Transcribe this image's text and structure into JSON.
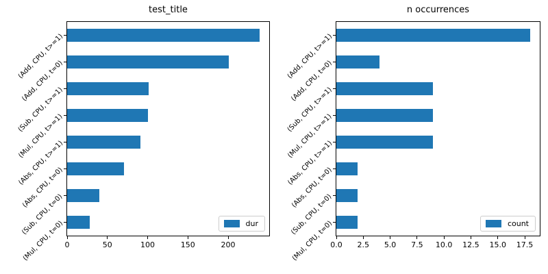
{
  "figure": {
    "background": "#ffffff",
    "bar_color": "#1f77b4"
  },
  "chart_data": [
    {
      "type": "bar",
      "orientation": "horizontal",
      "title": "test_title",
      "xlabel": "",
      "ylabel": "",
      "categories": [
        "(Add, CPU, t>=1)",
        "(Add, CPU, t=0)",
        "(Sub, CPU, t>=1)",
        "(Mul, CPU, t>=1)",
        "(Abs, CPU, t>=1)",
        "(Abs, CPU, t=0)",
        "(Sub, CPU, t=0)",
        "(Mul, CPU, t=0)"
      ],
      "series": [
        {
          "name": "dur",
          "values": [
            239,
            201,
            101,
            100,
            91,
            71,
            40,
            28
          ]
        }
      ],
      "xlim": [
        0,
        251
      ],
      "xticks": [
        0,
        50,
        100,
        150,
        200
      ],
      "xtick_labels": [
        "0",
        "50",
        "100",
        "150",
        "200"
      ],
      "grid": false,
      "legend": {
        "position": "lower right",
        "label": "dur"
      }
    },
    {
      "type": "bar",
      "orientation": "horizontal",
      "title": "n occurrences",
      "xlabel": "",
      "ylabel": "",
      "categories": [
        "(Add, CPU, t>=1)",
        "(Add, CPU, t=0)",
        "(Sub, CPU, t>=1)",
        "(Mul, CPU, t>=1)",
        "(Abs, CPU, t>=1)",
        "(Abs, CPU, t=0)",
        "(Sub, CPU, t=0)",
        "(Mul, CPU, t=0)"
      ],
      "series": [
        {
          "name": "count",
          "values": [
            18,
            4,
            9,
            9,
            9,
            2,
            2,
            2
          ]
        }
      ],
      "xlim": [
        0,
        18.9
      ],
      "xticks": [
        0,
        2.5,
        5,
        7.5,
        10,
        12.5,
        15,
        17.5
      ],
      "xtick_labels": [
        "0.0",
        "2.5",
        "5.0",
        "7.5",
        "10.0",
        "12.5",
        "15.0",
        "17.5"
      ],
      "grid": false,
      "legend": {
        "position": "lower right",
        "label": "count"
      }
    }
  ]
}
